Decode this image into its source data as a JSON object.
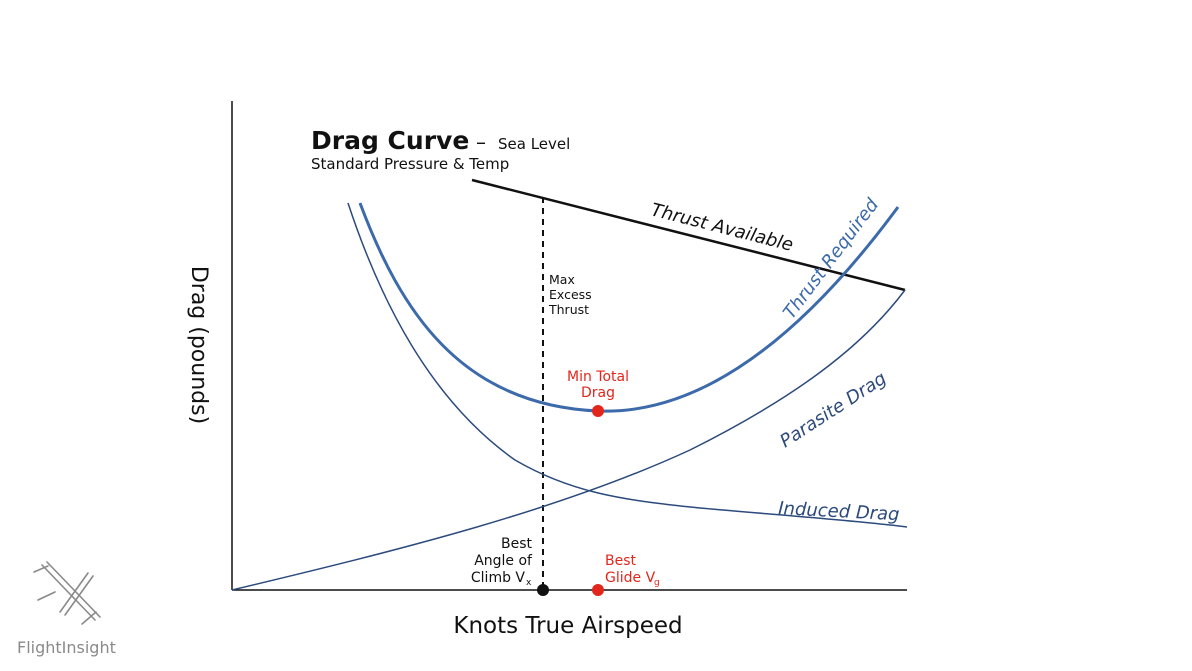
{
  "title": {
    "main": "Drag Curve",
    "dash": "–",
    "sub_inline": "Sea Level",
    "sub_line2": "Standard Pressure & Temp"
  },
  "axes": {
    "ylabel": "Drag (pounds)",
    "xlabel": "Knots True Airspeed"
  },
  "curves": {
    "thrust_available": "Thrust Available",
    "thrust_required": "Thrust Required",
    "parasite_drag": "Parasite Drag",
    "induced_drag": "Induced Drag"
  },
  "annotations": {
    "max_excess_thrust": [
      "Max",
      "Excess",
      "Thrust"
    ],
    "min_total_drag": [
      "Min Total",
      "Drag"
    ],
    "best_angle_climb": [
      "Best",
      "Angle of",
      "Climb V"
    ],
    "best_angle_climb_sub": "x",
    "best_glide": [
      "Best",
      "Glide V"
    ],
    "best_glide_sub": "g"
  },
  "logo": {
    "text": "FlightInsight"
  },
  "colors": {
    "blue": "#3c6aaa",
    "dark_blue": "#2c4a7c",
    "red": "#e3261c",
    "black": "#111111",
    "logo_gray": "#8a8a8a"
  }
}
